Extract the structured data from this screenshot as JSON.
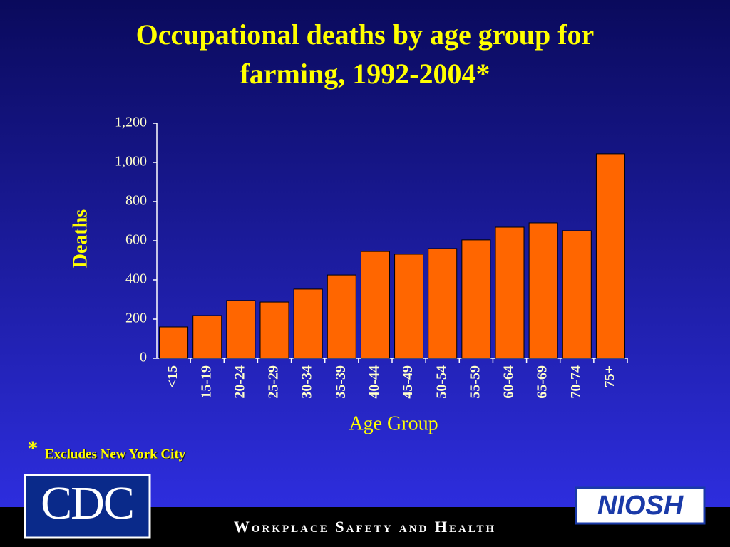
{
  "chart_data": {
    "type": "bar",
    "title": [
      "Occupational deaths by age group for",
      "farming, 1992-2004*"
    ],
    "categories": [
      "<15",
      "15-19",
      "20-24",
      "25-29",
      "30-34",
      "35-39",
      "40-44",
      "45-49",
      "50-54",
      "55-59",
      "60-64",
      "65-69",
      "70-74",
      "75+"
    ],
    "values": [
      160,
      218,
      295,
      287,
      353,
      425,
      545,
      531,
      560,
      604,
      669,
      691,
      651,
      1044
    ],
    "color": "#ff6600",
    "x_label": "Age Group",
    "y_label": "Deaths",
    "ylim": [
      0,
      1200
    ],
    "yticks": [
      0,
      200,
      400,
      600,
      800,
      {
        "value": 1000,
        "label": "1,000"
      },
      {
        "value": 1200,
        "label": "1,200"
      }
    ]
  },
  "footnote": {
    "marker": "*",
    "text": "Excludes New York City"
  },
  "footer": {
    "left_logo": "CDC",
    "tagline": "Workplace Safety and Health",
    "right_logo": "NIOSH"
  }
}
